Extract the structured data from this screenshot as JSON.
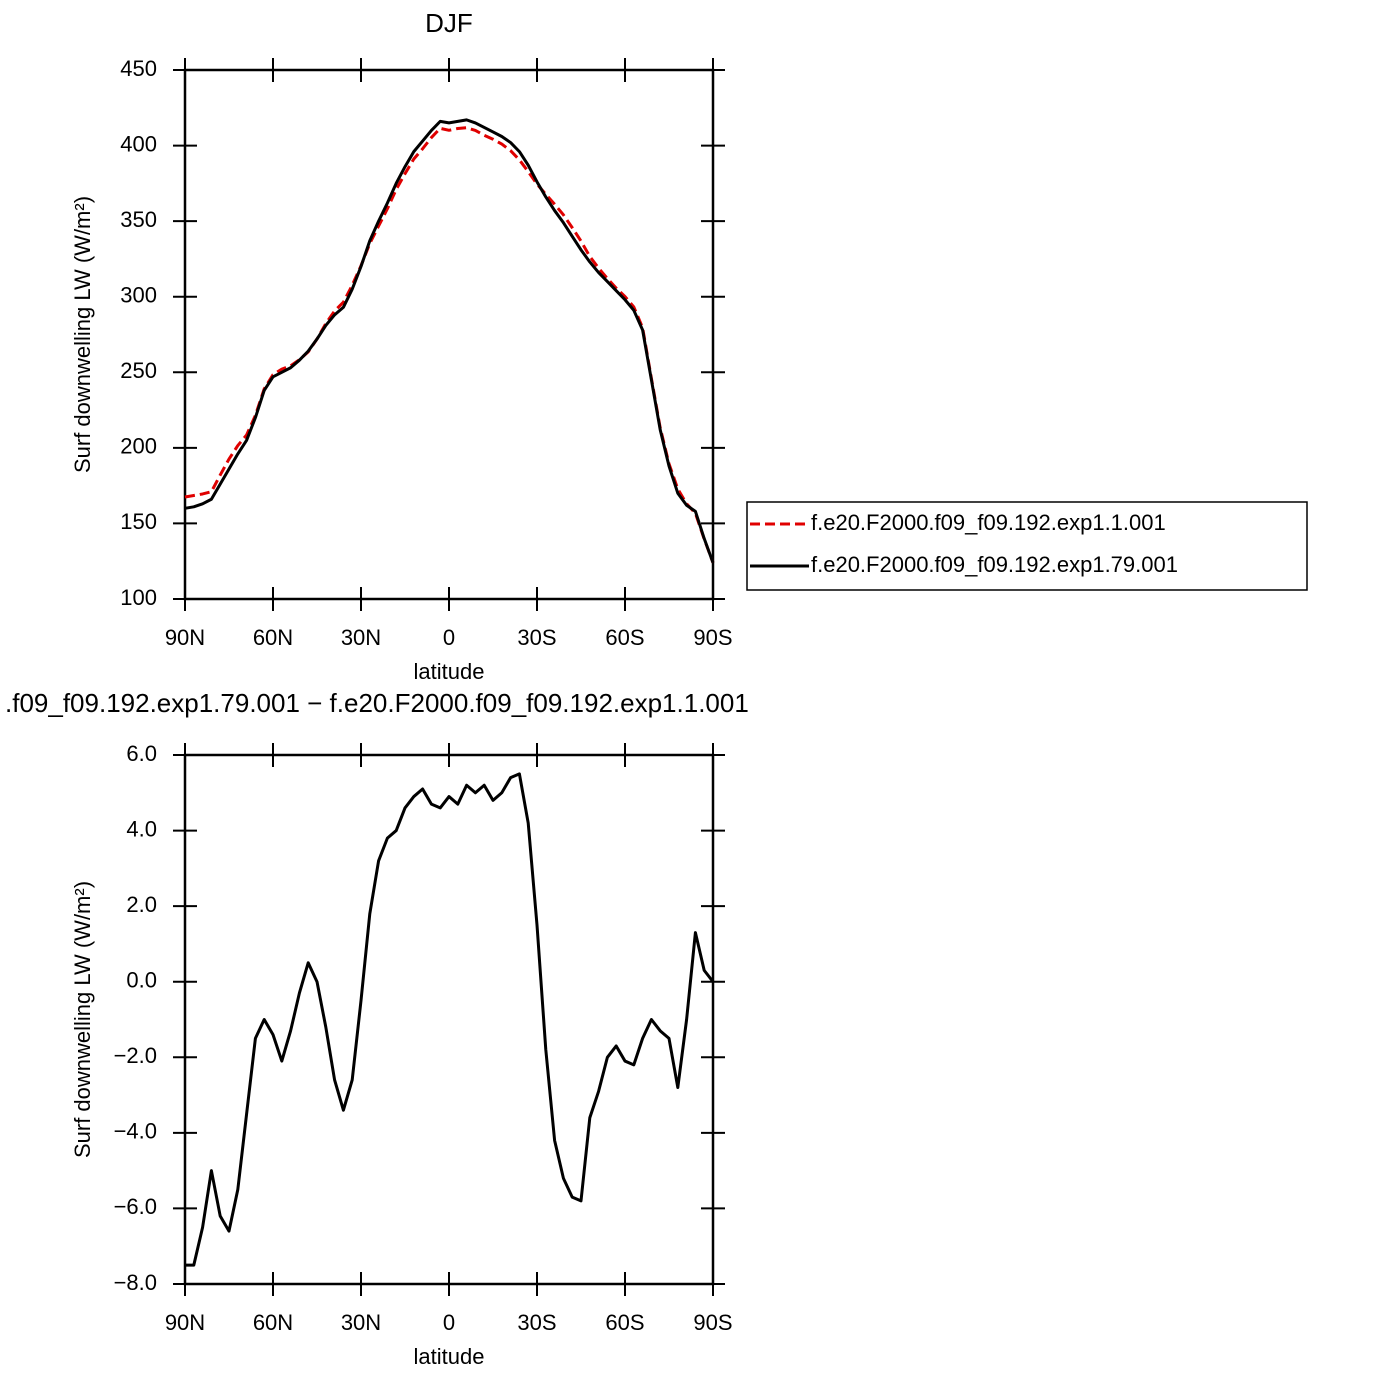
{
  "chart_data": [
    {
      "type": "line",
      "title": "DJF",
      "xlabel": "latitude",
      "ylabel": "Surf downwelling LW (W/m²)",
      "x": [
        90,
        87,
        84,
        81,
        78,
        75,
        72,
        69,
        66,
        63,
        60,
        57,
        54,
        51,
        48,
        45,
        42,
        39,
        36,
        33,
        30,
        27,
        24,
        21,
        18,
        15,
        12,
        9,
        6,
        3,
        0,
        -3,
        -6,
        -9,
        -12,
        -15,
        -18,
        -21,
        -24,
        -27,
        -30,
        -33,
        -36,
        -39,
        -42,
        -45,
        -48,
        -51,
        -54,
        -57,
        -60,
        -63,
        -66,
        -69,
        -72,
        -75,
        -78,
        -81,
        -84,
        -87,
        -90
      ],
      "series": [
        {
          "name": "f.e20.F2000.f09_f09.192.exp1.1.001",
          "color": "#e00000",
          "dash": "dashed",
          "values": [
            167.5,
            168.5,
            169.5,
            171,
            182,
            192.6,
            201.5,
            208.5,
            221.5,
            239,
            248.4,
            252.1,
            254.3,
            258.3,
            263.5,
            272,
            282.2,
            290.6,
            296.4,
            307.6,
            320.5,
            335.2,
            346.8,
            358.2,
            371,
            381.4,
            391.1,
            397.9,
            405.3,
            411.4,
            410.1,
            411.3,
            411.8,
            410,
            406.8,
            404.2,
            401,
            396.6,
            390.5,
            382.8,
            374.5,
            367.8,
            361.2,
            354.2,
            345.7,
            336.8,
            326.6,
            318.9,
            312,
            305.7,
            300.1,
            293.2,
            279.5,
            246,
            213.3,
            189.5,
            172.8,
            163,
            156.7,
            139.7,
            124
          ]
        },
        {
          "name": "f.e20.F2000.f09_f09.192.exp1.79.001",
          "color": "#000000",
          "dash": "solid",
          "values": [
            160,
            161,
            163,
            166,
            176,
            186,
            196,
            205,
            220,
            238,
            247,
            250,
            253,
            258,
            264,
            272,
            281,
            288,
            293,
            305,
            320,
            337,
            350,
            362,
            375,
            386,
            396,
            403,
            410,
            416,
            415,
            416,
            417,
            415,
            412,
            409,
            406,
            402,
            396,
            387,
            376,
            366,
            357,
            349,
            340,
            331,
            323,
            316,
            310,
            304,
            298,
            291,
            278,
            245,
            212,
            188,
            170,
            162,
            158,
            140,
            124
          ]
        }
      ],
      "xlim": [
        90,
        -90
      ],
      "xticks": [
        {
          "value": 90,
          "label": "90N"
        },
        {
          "value": 60,
          "label": "60N"
        },
        {
          "value": 30,
          "label": "30N"
        },
        0,
        {
          "value": -30,
          "label": "30S"
        },
        {
          "value": -60,
          "label": "60S"
        },
        {
          "value": -90,
          "label": "90S"
        }
      ],
      "ylim": [
        100,
        450
      ],
      "yticks": [
        100,
        150,
        200,
        250,
        300,
        350,
        400,
        450
      ],
      "legend": "right"
    },
    {
      "type": "line",
      "title": ".f09_f09.192.exp1.79.001 − f.e20.F2000.f09_f09.192.exp1.1.001",
      "xlabel": "latitude",
      "ylabel": "Surf downwelling LW (W/m²)",
      "x": [
        90,
        87,
        84,
        81,
        78,
        75,
        72,
        69,
        66,
        63,
        60,
        57,
        54,
        51,
        48,
        45,
        42,
        39,
        36,
        33,
        30,
        27,
        24,
        21,
        18,
        15,
        12,
        9,
        6,
        3,
        0,
        -3,
        -6,
        -9,
        -12,
        -15,
        -18,
        -21,
        -24,
        -27,
        -30,
        -33,
        -36,
        -39,
        -42,
        -45,
        -48,
        -51,
        -54,
        -57,
        -60,
        -63,
        -66,
        -69,
        -72,
        -75,
        -78,
        -81,
        -84,
        -87,
        -90
      ],
      "series": [
        {
          "color": "#000000",
          "dash": "solid",
          "values": [
            -7.5,
            -7.5,
            -6.5,
            -5.0,
            -6.2,
            -6.6,
            -5.5,
            -3.5,
            -1.5,
            -1.0,
            -1.4,
            -2.1,
            -1.3,
            -0.3,
            0.5,
            0.0,
            -1.2,
            -2.6,
            -3.4,
            -2.6,
            -0.5,
            1.8,
            3.2,
            3.8,
            4.0,
            4.6,
            4.9,
            5.1,
            4.7,
            4.6,
            4.9,
            4.7,
            5.2,
            5.0,
            5.2,
            4.8,
            5.0,
            5.4,
            5.5,
            4.2,
            1.5,
            -1.8,
            -4.2,
            -5.2,
            -5.7,
            -5.8,
            -3.6,
            -2.9,
            -2.0,
            -1.7,
            -2.1,
            -2.2,
            -1.5,
            -1.0,
            -1.3,
            -1.5,
            -2.8,
            -1.0,
            1.3,
            0.3,
            0.0
          ]
        }
      ],
      "xlim": [
        90,
        -90
      ],
      "xticks": [
        {
          "value": 90,
          "label": "90N"
        },
        {
          "value": 60,
          "label": "60N"
        },
        {
          "value": 30,
          "label": "30N"
        },
        0,
        {
          "value": -30,
          "label": "30S"
        },
        {
          "value": -60,
          "label": "60S"
        },
        {
          "value": -90,
          "label": "90S"
        }
      ],
      "ylim": [
        -8,
        6
      ],
      "yticks": [
        {
          "value": -8,
          "label": "−8.0"
        },
        {
          "value": -6,
          "label": "−6.0"
        },
        {
          "value": -4,
          "label": "−4.0"
        },
        {
          "value": -2,
          "label": "−2.0"
        },
        {
          "value": 0,
          "label": "0.0"
        },
        {
          "value": 2,
          "label": "2.0"
        },
        {
          "value": 4,
          "label": "4.0"
        },
        {
          "value": 6,
          "label": "6.0"
        }
      ]
    }
  ]
}
